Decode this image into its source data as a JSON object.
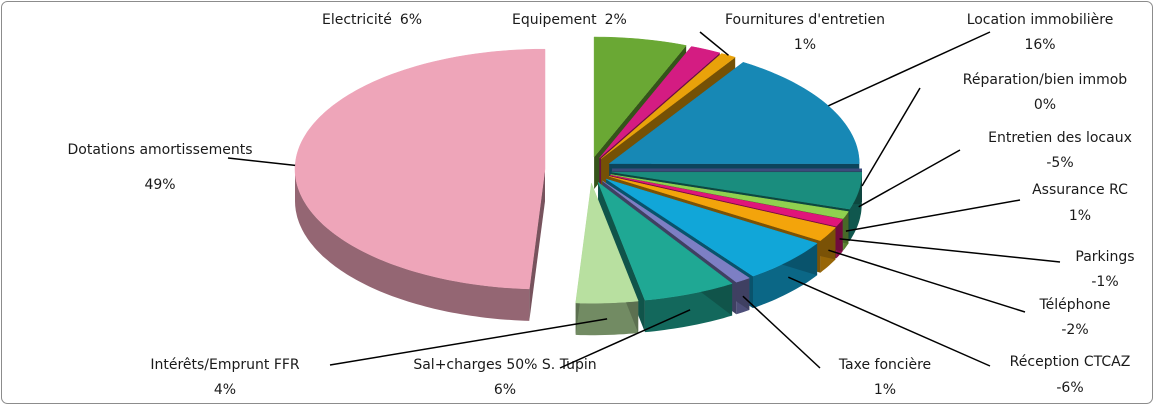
{
  "chart_data": {
    "type": "pie3d",
    "categories": [
      "Electricité",
      "Equipement",
      "Fournitures d'entretien",
      "Location immobilière",
      "Réparation/bien immob",
      "Entretien des locaux",
      "Assurance RC",
      "Parkings",
      "Téléphone",
      "Réception CTCAZ",
      "Taxe foncière",
      "Sal+charges 50% S. Tupin",
      "Intérêts/Emprunt FFR",
      "Dotations amortissements"
    ],
    "values": [
      6,
      2,
      1,
      16,
      0,
      -5,
      1,
      -1,
      -2,
      -6,
      1,
      6,
      4,
      49
    ],
    "value_labels": [
      "6%",
      "2%",
      "1%",
      "16%",
      "0%",
      "-5%",
      "1%",
      "-1%",
      "-2%",
      "-6%",
      "1%",
      "6%",
      "4%",
      "49%"
    ],
    "colors": [
      "#6aa834",
      "#d41c82",
      "#e9a20a",
      "#1788b5",
      "#3c4b7c",
      "#1a8d7e",
      "#8fd14f",
      "#e0157a",
      "#f3a40b",
      "#11a6d8",
      "#7d7fc4",
      "#1fa894",
      "#b8e0a0",
      "#eea5b9"
    ]
  }
}
